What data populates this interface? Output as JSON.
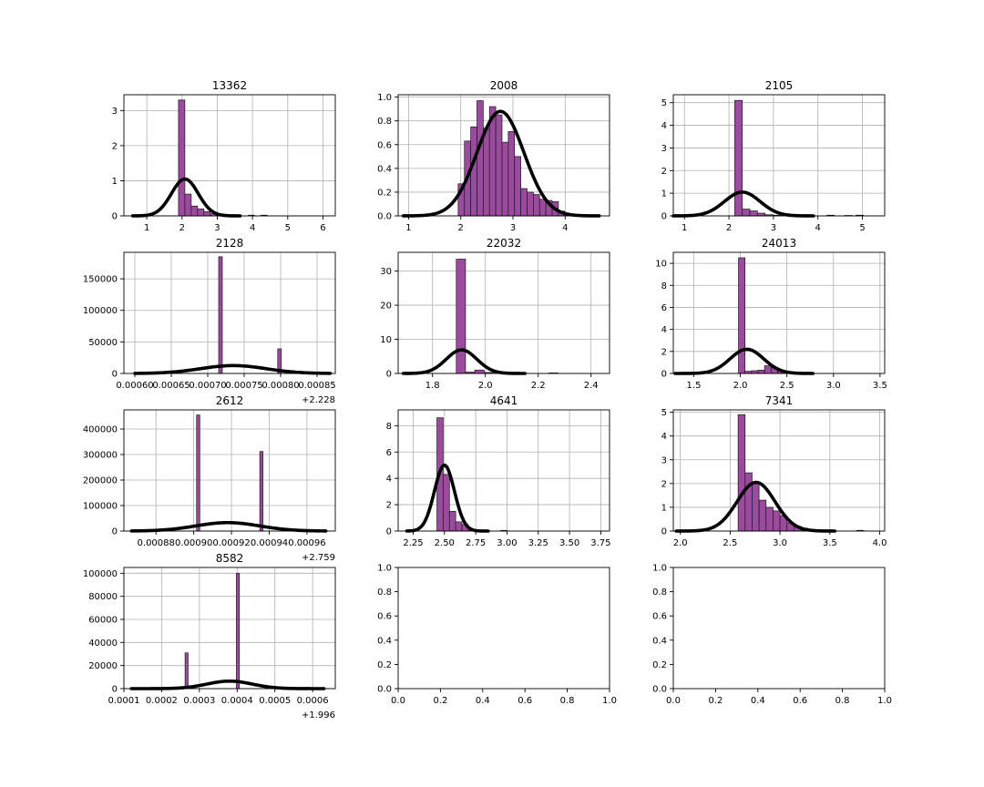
{
  "figure": {
    "background": "#ffffff"
  },
  "style": {
    "bar_fill": "#9b4a9e",
    "bar_edge": "#1a1a1a",
    "curve_color": "#000000",
    "grid_color": "#b0b0b0"
  },
  "chart_data": [
    {
      "type": "bar",
      "title": "13362",
      "xlim": [
        0.35,
        6.35
      ],
      "ylim": [
        0,
        3.45
      ],
      "xticks": [
        1,
        2,
        3,
        4,
        5,
        6
      ],
      "xtick_labels": [
        "1",
        "2",
        "3",
        "4",
        "5",
        "6"
      ],
      "yticks": [
        0,
        1,
        2,
        3
      ],
      "ytick_labels": [
        "0",
        "1",
        "2",
        "3"
      ],
      "offset_label": "",
      "grid": true,
      "bins": [
        {
          "x0": 1.9,
          "x1": 2.08,
          "v": 3.3
        },
        {
          "x0": 2.08,
          "x1": 2.26,
          "v": 0.62
        },
        {
          "x0": 2.26,
          "x1": 2.44,
          "v": 0.28
        },
        {
          "x0": 2.44,
          "x1": 2.62,
          "v": 0.2
        },
        {
          "x0": 2.62,
          "x1": 2.8,
          "v": 0.12
        },
        {
          "x0": 2.8,
          "x1": 2.98,
          "v": 0.06
        },
        {
          "x0": 2.98,
          "x1": 3.16,
          "v": 0.03
        },
        {
          "x0": 3.16,
          "x1": 3.34,
          "v": 0.02
        },
        {
          "x0": 3.34,
          "x1": 3.52,
          "v": 0.01
        },
        {
          "x0": 3.88,
          "x1": 4.06,
          "v": 0.02
        },
        {
          "x0": 4.24,
          "x1": 4.42,
          "v": 0.02
        }
      ],
      "curve": {
        "mean": 2.08,
        "sd": 0.38,
        "amp": 1.05,
        "x_range": [
          0.6,
          3.65
        ]
      }
    },
    {
      "type": "bar",
      "title": "2008",
      "xlim": [
        0.8,
        4.85
      ],
      "ylim": [
        0,
        1.02
      ],
      "xticks": [
        1,
        2,
        3,
        4
      ],
      "xtick_labels": [
        "1",
        "2",
        "3",
        "4"
      ],
      "yticks": [
        0,
        0.2,
        0.4,
        0.6,
        0.8,
        1.0
      ],
      "ytick_labels": [
        "0.0",
        "0.2",
        "0.4",
        "0.6",
        "0.8",
        "1.0"
      ],
      "offset_label": "",
      "grid": true,
      "bins": [
        {
          "x0": 1.95,
          "x1": 2.07,
          "v": 0.27
        },
        {
          "x0": 2.07,
          "x1": 2.19,
          "v": 0.63
        },
        {
          "x0": 2.19,
          "x1": 2.31,
          "v": 0.75
        },
        {
          "x0": 2.31,
          "x1": 2.43,
          "v": 0.97
        },
        {
          "x0": 2.43,
          "x1": 2.55,
          "v": 0.74
        },
        {
          "x0": 2.55,
          "x1": 2.67,
          "v": 0.92
        },
        {
          "x0": 2.67,
          "x1": 2.79,
          "v": 0.85
        },
        {
          "x0": 2.79,
          "x1": 2.91,
          "v": 0.62
        },
        {
          "x0": 2.91,
          "x1": 3.03,
          "v": 0.71
        },
        {
          "x0": 3.03,
          "x1": 3.15,
          "v": 0.5
        },
        {
          "x0": 3.15,
          "x1": 3.27,
          "v": 0.23
        },
        {
          "x0": 3.27,
          "x1": 3.39,
          "v": 0.2
        },
        {
          "x0": 3.39,
          "x1": 3.51,
          "v": 0.18
        },
        {
          "x0": 3.51,
          "x1": 3.63,
          "v": 0.14
        },
        {
          "x0": 3.63,
          "x1": 3.75,
          "v": 0.13
        },
        {
          "x0": 3.75,
          "x1": 3.87,
          "v": 0.12
        },
        {
          "x0": 3.87,
          "x1": 3.99,
          "v": 0.04
        },
        {
          "x0": 3.99,
          "x1": 4.11,
          "v": 0.02
        },
        {
          "x0": 4.5,
          "x1": 4.62,
          "v": 0.005
        }
      ],
      "curve": {
        "mean": 2.76,
        "sd": 0.45,
        "amp": 0.88,
        "x_range": [
          0.9,
          4.65
        ]
      }
    },
    {
      "type": "bar",
      "title": "2105",
      "xlim": [
        0.75,
        5.5
      ],
      "ylim": [
        0,
        5.35
      ],
      "xticks": [
        1,
        2,
        3,
        4,
        5
      ],
      "xtick_labels": [
        "1",
        "2",
        "3",
        "4",
        "5"
      ],
      "yticks": [
        0,
        1,
        2,
        3,
        4,
        5
      ],
      "ytick_labels": [
        "0",
        "1",
        "2",
        "3",
        "4",
        "5"
      ],
      "offset_label": "",
      "grid": true,
      "bins": [
        {
          "x0": 2.13,
          "x1": 2.3,
          "v": 5.1
        },
        {
          "x0": 2.3,
          "x1": 2.47,
          "v": 0.3
        },
        {
          "x0": 2.47,
          "x1": 2.64,
          "v": 0.22
        },
        {
          "x0": 2.64,
          "x1": 2.81,
          "v": 0.12
        },
        {
          "x0": 2.81,
          "x1": 2.98,
          "v": 0.05
        },
        {
          "x0": 2.98,
          "x1": 3.15,
          "v": 0.03
        },
        {
          "x0": 4.2,
          "x1": 4.37,
          "v": 0.03
        },
        {
          "x0": 4.6,
          "x1": 4.77,
          "v": 0.02
        },
        {
          "x0": 4.85,
          "x1": 5.02,
          "v": 0.03
        }
      ],
      "curve": {
        "mean": 2.3,
        "sd": 0.4,
        "amp": 1.05,
        "x_range": [
          0.75,
          3.9
        ]
      }
    },
    {
      "type": "bar",
      "title": "2128",
      "xlim": [
        0.000585,
        0.000875
      ],
      "ylim": [
        0,
        192000
      ],
      "xticks": [
        0.0006,
        0.00065,
        0.0007,
        0.00075,
        0.0008,
        0.00085
      ],
      "xtick_labels": [
        "0.00060",
        "0.00065",
        "0.00070",
        "0.00075",
        "0.00080",
        "0.00085"
      ],
      "yticks": [
        0,
        50000,
        100000,
        150000
      ],
      "ytick_labels": [
        "0",
        "50000",
        "100000",
        "150000"
      ],
      "offset_label": "+2.228",
      "grid": true,
      "bins": [
        {
          "x0": 0.000715,
          "x1": 0.00072,
          "v": 185000
        },
        {
          "x0": 0.000796,
          "x1": 0.000801,
          "v": 39000
        }
      ],
      "curve": {
        "mean": 0.000735,
        "sd": 4.5e-05,
        "amp": 12500,
        "x_range": [
          0.0006,
          0.000868
        ]
      }
    },
    {
      "type": "bar",
      "title": "22032",
      "xlim": [
        1.67,
        2.47
      ],
      "ylim": [
        0,
        35.5
      ],
      "xticks": [
        1.8,
        2.0,
        2.2,
        2.4
      ],
      "xtick_labels": [
        "1.8",
        "2.0",
        "2.2",
        "2.4"
      ],
      "yticks": [
        0,
        10,
        20,
        30
      ],
      "ytick_labels": [
        "0",
        "10",
        "20",
        "30"
      ],
      "offset_label": "",
      "grid": true,
      "bins": [
        {
          "x0": 1.89,
          "x1": 1.925,
          "v": 33.5
        },
        {
          "x0": 1.925,
          "x1": 1.96,
          "v": 0.4
        },
        {
          "x0": 1.96,
          "x1": 1.995,
          "v": 1.0
        },
        {
          "x0": 1.995,
          "x1": 2.03,
          "v": 0.3
        },
        {
          "x0": 2.24,
          "x1": 2.275,
          "v": 0.15
        }
      ],
      "curve": {
        "mean": 1.91,
        "sd": 0.058,
        "amp": 6.9,
        "x_range": [
          1.69,
          2.15
        ]
      }
    },
    {
      "type": "bar",
      "title": "24013",
      "xlim": [
        1.28,
        3.55
      ],
      "ylim": [
        0,
        11
      ],
      "xticks": [
        1.5,
        2.0,
        2.5,
        3.0,
        3.5
      ],
      "xtick_labels": [
        "1.5",
        "2.0",
        "2.5",
        "3.0",
        "3.5"
      ],
      "yticks": [
        0,
        2,
        4,
        6,
        8,
        10
      ],
      "ytick_labels": [
        "0",
        "2",
        "4",
        "6",
        "8",
        "10"
      ],
      "offset_label": "",
      "grid": true,
      "bins": [
        {
          "x0": 1.98,
          "x1": 2.05,
          "v": 10.5
        },
        {
          "x0": 2.05,
          "x1": 2.12,
          "v": 0.2
        },
        {
          "x0": 2.12,
          "x1": 2.19,
          "v": 0.25
        },
        {
          "x0": 2.19,
          "x1": 2.26,
          "v": 0.3
        },
        {
          "x0": 2.26,
          "x1": 2.33,
          "v": 0.7
        },
        {
          "x0": 2.33,
          "x1": 2.4,
          "v": 0.5
        },
        {
          "x0": 2.4,
          "x1": 2.47,
          "v": 0.2
        },
        {
          "x0": 2.47,
          "x1": 2.54,
          "v": 0.1
        }
      ],
      "curve": {
        "mean": 2.07,
        "sd": 0.18,
        "amp": 2.2,
        "x_range": [
          1.3,
          2.78
        ]
      }
    },
    {
      "type": "bar",
      "title": "2612",
      "xlim": [
        0.000863,
        0.000975
      ],
      "ylim": [
        0,
        475000
      ],
      "xticks": [
        0.00088,
        0.0009,
        0.00092,
        0.00094,
        0.00096
      ],
      "xtick_labels": [
        "0.00088",
        "0.00090",
        "0.00092",
        "0.00094",
        "0.00096"
      ],
      "yticks": [
        0,
        100000,
        200000,
        300000,
        400000
      ],
      "ytick_labels": [
        "0",
        "100000",
        "200000",
        "300000",
        "400000"
      ],
      "offset_label": "+2.759",
      "grid": true,
      "bins": [
        {
          "x0": 0.0009015,
          "x1": 0.0009032,
          "v": 455000
        },
        {
          "x0": 0.000935,
          "x1": 0.0009367,
          "v": 312000
        }
      ],
      "curve": {
        "mean": 0.000918,
        "sd": 1.7e-05,
        "amp": 33000,
        "x_range": [
          0.000867,
          0.00097
        ]
      }
    },
    {
      "type": "bar",
      "title": "4641",
      "xlim": [
        2.13,
        3.82
      ],
      "ylim": [
        0,
        9.2
      ],
      "xticks": [
        2.25,
        2.5,
        2.75,
        3.0,
        3.25,
        3.5,
        3.75
      ],
      "xtick_labels": [
        "2.25",
        "2.50",
        "2.75",
        "3.00",
        "3.25",
        "3.50",
        "3.75"
      ],
      "yticks": [
        0,
        2,
        4,
        6,
        8
      ],
      "ytick_labels": [
        "0",
        "2",
        "4",
        "6",
        "8"
      ],
      "offset_label": "",
      "grid": true,
      "bins": [
        {
          "x0": 2.44,
          "x1": 2.49,
          "v": 8.6
        },
        {
          "x0": 2.49,
          "x1": 2.54,
          "v": 4.3
        },
        {
          "x0": 2.54,
          "x1": 2.59,
          "v": 1.5
        },
        {
          "x0": 2.59,
          "x1": 2.64,
          "v": 0.7
        },
        {
          "x0": 2.64,
          "x1": 2.69,
          "v": 0.5
        },
        {
          "x0": 2.69,
          "x1": 2.74,
          "v": 0.12
        },
        {
          "x0": 2.74,
          "x1": 2.79,
          "v": 0.05
        },
        {
          "x0": 2.95,
          "x1": 3.0,
          "v": 0.05
        }
      ],
      "curve": {
        "mean": 2.5,
        "sd": 0.08,
        "amp": 5.0,
        "x_range": [
          2.2,
          2.85
        ]
      }
    },
    {
      "type": "bar",
      "title": "7341",
      "xlim": [
        1.93,
        4.05
      ],
      "ylim": [
        0,
        5.1
      ],
      "xticks": [
        2.0,
        2.5,
        3.0,
        3.5,
        4.0
      ],
      "xtick_labels": [
        "2.0",
        "2.5",
        "3.0",
        "3.5",
        "4.0"
      ],
      "yticks": [
        0,
        1,
        2,
        3,
        4,
        5
      ],
      "ytick_labels": [
        "0",
        "1",
        "2",
        "3",
        "4",
        "5"
      ],
      "offset_label": "",
      "grid": true,
      "bins": [
        {
          "x0": 2.58,
          "x1": 2.65,
          "v": 4.9
        },
        {
          "x0": 2.65,
          "x1": 2.72,
          "v": 2.45
        },
        {
          "x0": 2.72,
          "x1": 2.79,
          "v": 2.0
        },
        {
          "x0": 2.79,
          "x1": 2.86,
          "v": 1.3
        },
        {
          "x0": 2.86,
          "x1": 2.93,
          "v": 1.0
        },
        {
          "x0": 2.93,
          "x1": 3.0,
          "v": 0.85
        },
        {
          "x0": 3.0,
          "x1": 3.07,
          "v": 0.65
        },
        {
          "x0": 3.07,
          "x1": 3.14,
          "v": 0.35
        },
        {
          "x0": 3.14,
          "x1": 3.21,
          "v": 0.2
        },
        {
          "x0": 3.21,
          "x1": 3.28,
          "v": 0.12
        },
        {
          "x0": 3.28,
          "x1": 3.35,
          "v": 0.05
        },
        {
          "x0": 3.77,
          "x1": 3.84,
          "v": 0.03
        }
      ],
      "curve": {
        "mean": 2.76,
        "sd": 0.19,
        "amp": 2.05,
        "x_range": [
          1.96,
          3.55
        ]
      }
    },
    {
      "type": "bar",
      "title": "8582",
      "xlim": [
        0.0001,
        0.00066
      ],
      "ylim": [
        0,
        105000
      ],
      "xticks": [
        0.0001,
        0.0002,
        0.0003,
        0.0004,
        0.0005,
        0.0006
      ],
      "xtick_labels": [
        "0.0001",
        "0.0002",
        "0.0003",
        "0.0004",
        "0.0005",
        "0.0006"
      ],
      "yticks": [
        0,
        20000,
        40000,
        60000,
        80000,
        100000
      ],
      "ytick_labels": [
        "0",
        "20000",
        "40000",
        "60000",
        "80000",
        "100000"
      ],
      "offset_label": "+1.996",
      "grid": true,
      "bins": [
        {
          "x0": 0.000262,
          "x1": 0.00027,
          "v": 31000
        },
        {
          "x0": 0.000398,
          "x1": 0.000406,
          "v": 100000
        }
      ],
      "curve": {
        "mean": 0.00038,
        "sd": 6e-05,
        "amp": 6500,
        "x_range": [
          0.00012,
          0.00063
        ]
      }
    },
    {
      "type": "bar",
      "title": "",
      "xlim": [
        0,
        1
      ],
      "ylim": [
        0,
        1
      ],
      "xticks": [
        0,
        0.2,
        0.4,
        0.6,
        0.8,
        1.0
      ],
      "xtick_labels": [
        "0.0",
        "0.2",
        "0.4",
        "0.6",
        "0.8",
        "1.0"
      ],
      "yticks": [
        0,
        0.2,
        0.4,
        0.6,
        0.8,
        1.0
      ],
      "ytick_labels": [
        "0.0",
        "0.2",
        "0.4",
        "0.6",
        "0.8",
        "1.0"
      ],
      "offset_label": "",
      "grid": false,
      "bins": [],
      "curve": null
    },
    {
      "type": "bar",
      "title": "",
      "xlim": [
        0,
        1
      ],
      "ylim": [
        0,
        1
      ],
      "xticks": [
        0,
        0.2,
        0.4,
        0.6,
        0.8,
        1.0
      ],
      "xtick_labels": [
        "0.0",
        "0.2",
        "0.4",
        "0.6",
        "0.8",
        "1.0"
      ],
      "yticks": [
        0,
        0.2,
        0.4,
        0.6,
        0.8,
        1.0
      ],
      "ytick_labels": [
        "0.0",
        "0.2",
        "0.4",
        "0.6",
        "0.8",
        "1.0"
      ],
      "offset_label": "",
      "grid": false,
      "bins": [],
      "curve": null
    }
  ]
}
